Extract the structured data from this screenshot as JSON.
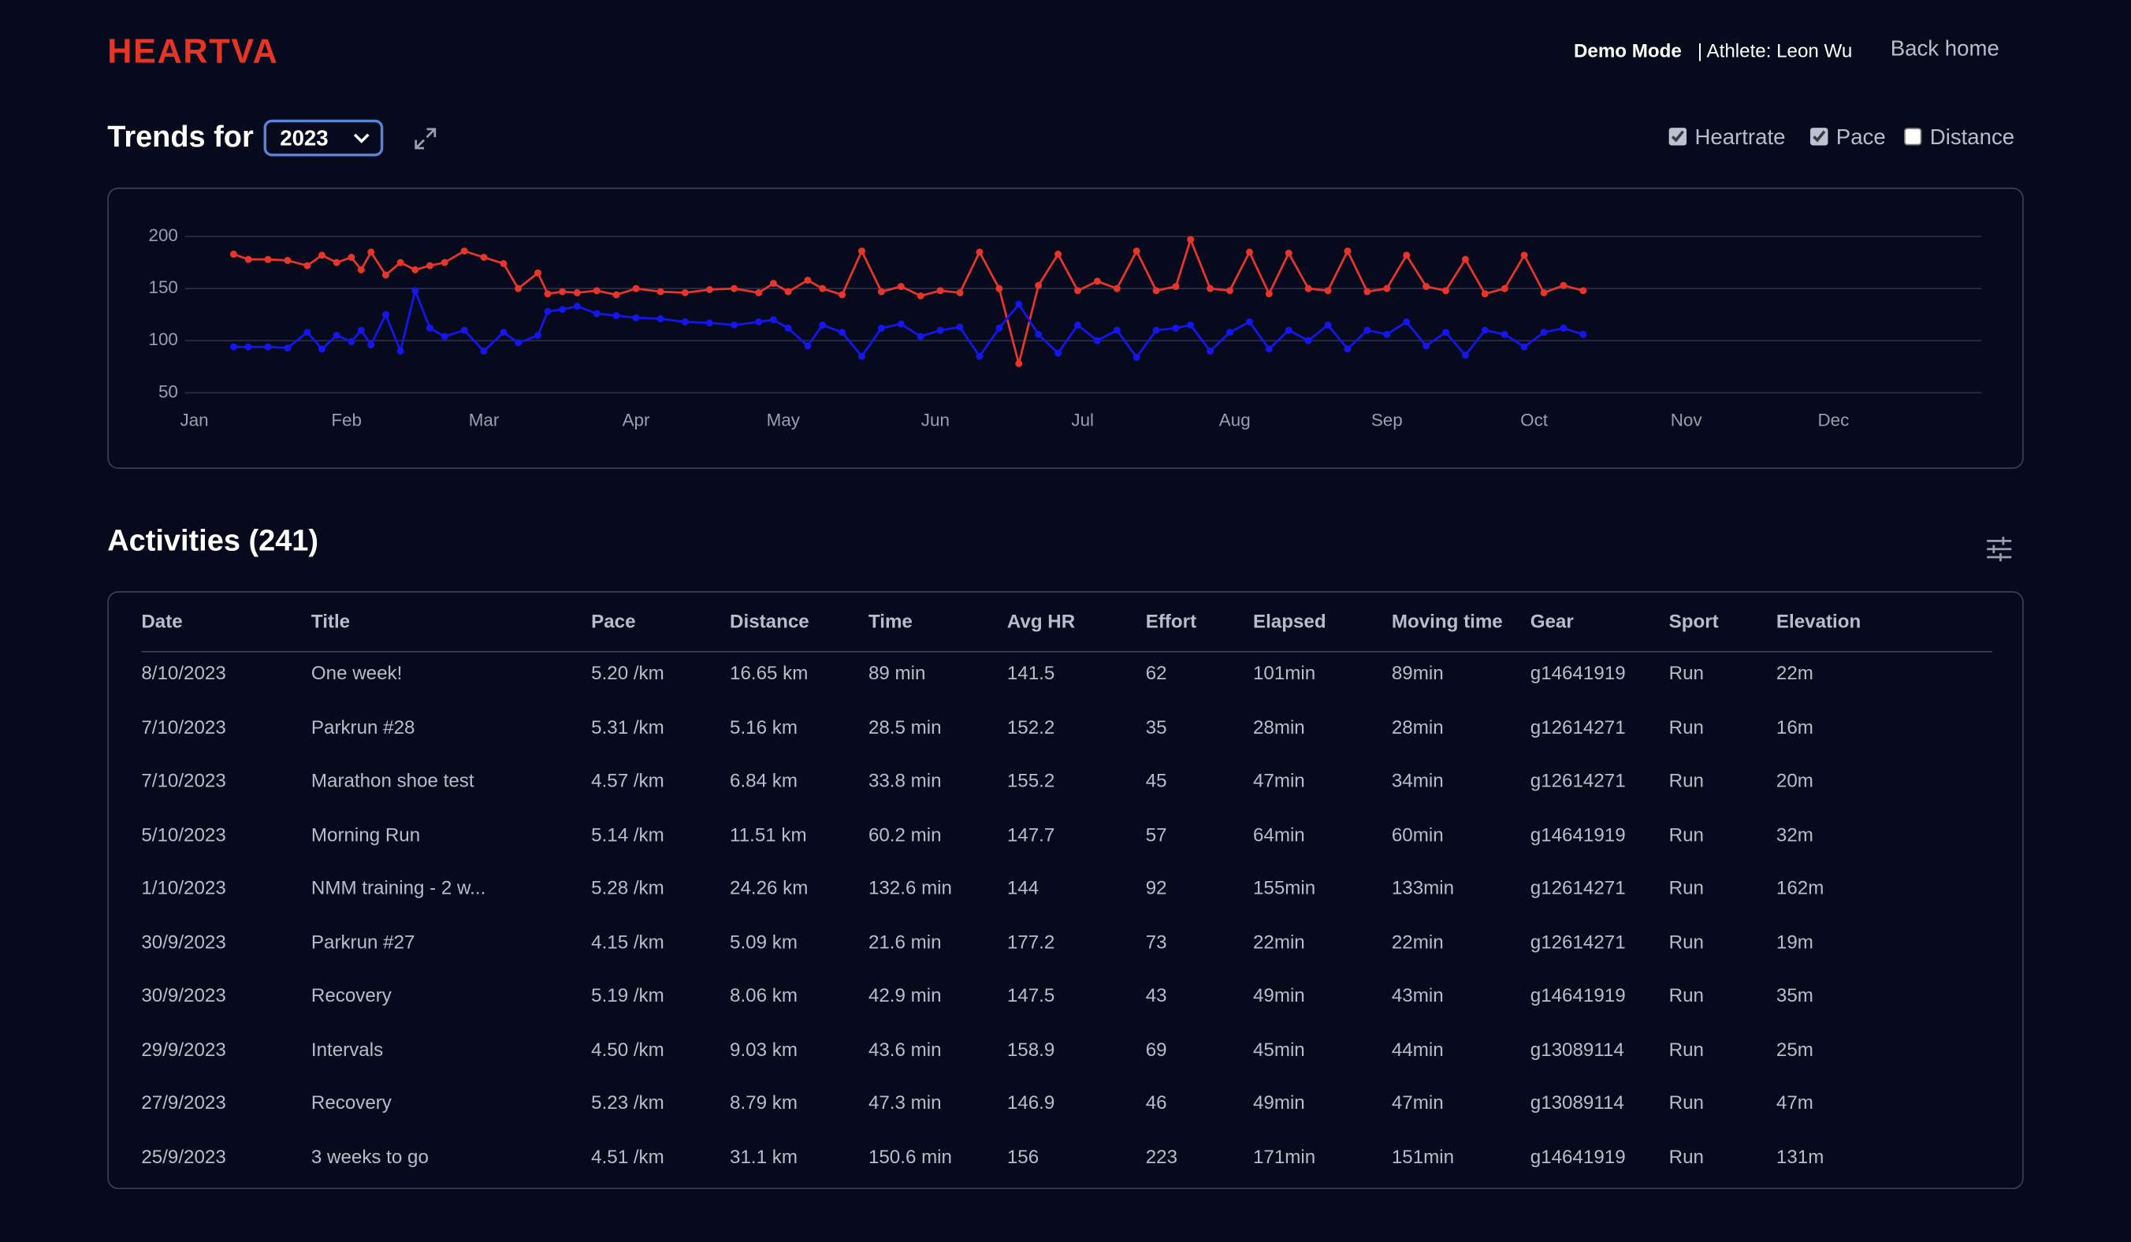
{
  "header": {
    "logo": "HEARTVA",
    "mode": "Demo Mode",
    "athlete": "| Athlete: Leon Wu",
    "back": "Back home"
  },
  "trends": {
    "label": "Trends for",
    "year": "2023",
    "extra_toggle": {
      "label": "Distance",
      "checked": false
    }
  },
  "chart_data": {
    "type": "line",
    "x": [
      8,
      11,
      15,
      19,
      23,
      26,
      29,
      32,
      34,
      36,
      39,
      42,
      45,
      48,
      51,
      55,
      59,
      63,
      66,
      70,
      72,
      75,
      78,
      82,
      86,
      90,
      95,
      100,
      105,
      110,
      115,
      118,
      121,
      125,
      128,
      132,
      136,
      140,
      144,
      148,
      152,
      156,
      160,
      164,
      168,
      172,
      176,
      180,
      184,
      188,
      192,
      196,
      200,
      203,
      207,
      211,
      215,
      219,
      223,
      227,
      231,
      235,
      239,
      243,
      247,
      251,
      255,
      259,
      263,
      267,
      271,
      275,
      279,
      283
    ],
    "series": [
      {
        "name": "Heartrate",
        "color": "#e8352b",
        "visible": true,
        "values": [
          183,
          178,
          178,
          177,
          172,
          182,
          175,
          180,
          168,
          185,
          163,
          175,
          168,
          172,
          175,
          186,
          180,
          174,
          150,
          165,
          145,
          147,
          146,
          148,
          144,
          150,
          147,
          146,
          149,
          150,
          146,
          155,
          147,
          158,
          150,
          144,
          186,
          147,
          152,
          143,
          148,
          146,
          185,
          150,
          78,
          153,
          183,
          148,
          157,
          150,
          186,
          148,
          152,
          197,
          150,
          148,
          185,
          145,
          184,
          150,
          148,
          186,
          147,
          150,
          182,
          152,
          148,
          178,
          145,
          150,
          182,
          146,
          153,
          148
        ]
      },
      {
        "name": "Pace",
        "color": "#1515ee",
        "visible": true,
        "values": [
          94,
          94,
          94,
          93,
          108,
          92,
          105,
          99,
          110,
          96,
          125,
          90,
          148,
          112,
          104,
          110,
          90,
          108,
          98,
          105,
          128,
          130,
          133,
          126,
          124,
          122,
          121,
          118,
          117,
          115,
          118,
          120,
          112,
          95,
          115,
          108,
          85,
          112,
          116,
          104,
          110,
          113,
          85,
          112,
          135,
          106,
          88,
          115,
          100,
          110,
          84,
          110,
          112,
          115,
          90,
          108,
          118,
          92,
          110,
          100,
          115,
          92,
          110,
          106,
          118,
          95,
          108,
          86,
          110,
          106,
          94,
          108,
          112,
          106
        ]
      }
    ],
    "xlim": [
      0,
      365
    ],
    "xticks": [
      {
        "value": 0,
        "label": "Jan"
      },
      {
        "value": 31,
        "label": "Feb"
      },
      {
        "value": 59,
        "label": "Mar"
      },
      {
        "value": 90,
        "label": "Apr"
      },
      {
        "value": 120,
        "label": "May"
      },
      {
        "value": 151,
        "label": "Jun"
      },
      {
        "value": 181,
        "label": "Jul"
      },
      {
        "value": 212,
        "label": "Aug"
      },
      {
        "value": 243,
        "label": "Sep"
      },
      {
        "value": 273,
        "label": "Oct"
      },
      {
        "value": 304,
        "label": "Nov"
      },
      {
        "value": 334,
        "label": "Dec"
      }
    ],
    "ylim": [
      50,
      200
    ],
    "yticks": [
      50,
      100,
      150,
      200
    ],
    "grid": true
  },
  "activities": {
    "title": "Activities (241)",
    "columns": [
      "Date",
      "Title",
      "Pace",
      "Distance",
      "Time",
      "Avg HR",
      "Effort",
      "Elapsed",
      "Moving time",
      "Gear",
      "Sport",
      "Elevation"
    ],
    "rows": [
      [
        "8/10/2023",
        "One week!",
        "5.20 /km",
        "16.65 km",
        "89 min",
        "141.5",
        "62",
        "101min",
        "89min",
        "g14641919",
        "Run",
        "22m"
      ],
      [
        "7/10/2023",
        "Parkrun #28",
        "5.31 /km",
        "5.16 km",
        "28.5 min",
        "152.2",
        "35",
        "28min",
        "28min",
        "g12614271",
        "Run",
        "16m"
      ],
      [
        "7/10/2023",
        "Marathon shoe test",
        "4.57 /km",
        "6.84 km",
        "33.8 min",
        "155.2",
        "45",
        "47min",
        "34min",
        "g12614271",
        "Run",
        "20m"
      ],
      [
        "5/10/2023",
        "Morning Run",
        "5.14 /km",
        "11.51 km",
        "60.2 min",
        "147.7",
        "57",
        "64min",
        "60min",
        "g14641919",
        "Run",
        "32m"
      ],
      [
        "1/10/2023",
        "NMM training - 2 w...",
        "5.28 /km",
        "24.26 km",
        "132.6 min",
        "144",
        "92",
        "155min",
        "133min",
        "g12614271",
        "Run",
        "162m"
      ],
      [
        "30/9/2023",
        "Parkrun #27",
        "4.15 /km",
        "5.09 km",
        "21.6 min",
        "177.2",
        "73",
        "22min",
        "22min",
        "g12614271",
        "Run",
        "19m"
      ],
      [
        "30/9/2023",
        "Recovery",
        "5.19 /km",
        "8.06 km",
        "42.9 min",
        "147.5",
        "43",
        "49min",
        "43min",
        "g14641919",
        "Run",
        "35m"
      ],
      [
        "29/9/2023",
        "Intervals",
        "4.50 /km",
        "9.03 km",
        "43.6 min",
        "158.9",
        "69",
        "45min",
        "44min",
        "g13089114",
        "Run",
        "25m"
      ],
      [
        "27/9/2023",
        "Recovery",
        "5.23 /km",
        "8.79 km",
        "47.3 min",
        "146.9",
        "46",
        "49min",
        "47min",
        "g13089114",
        "Run",
        "47m"
      ],
      [
        "25/9/2023",
        "3 weeks to go",
        "4.51 /km",
        "31.1 km",
        "150.6 min",
        "156",
        "223",
        "171min",
        "151min",
        "g14641919",
        "Run",
        "131m"
      ]
    ]
  }
}
